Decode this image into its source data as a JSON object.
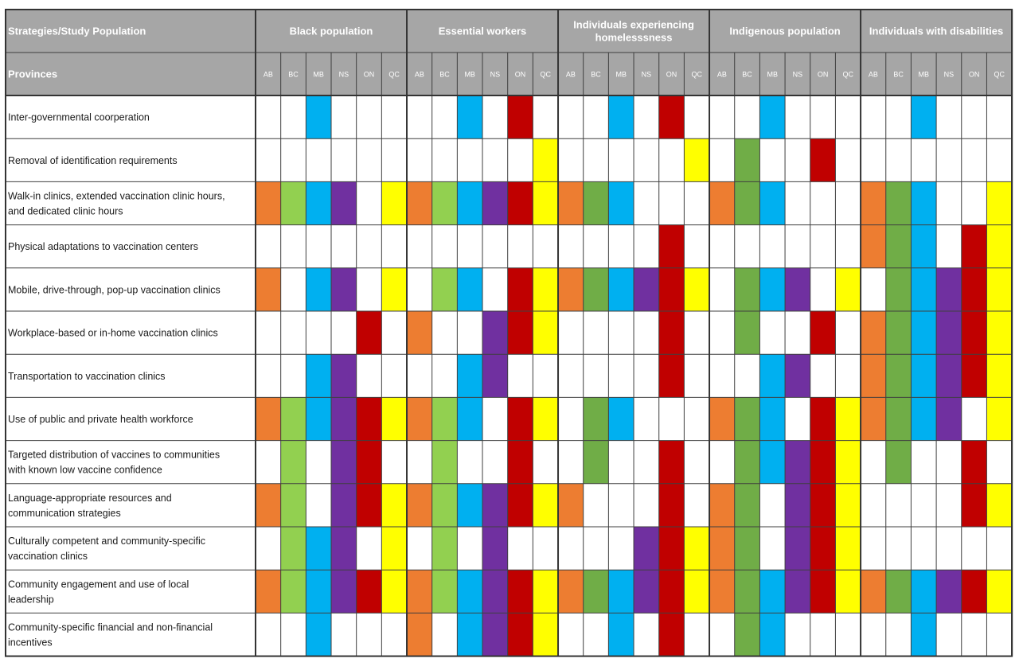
{
  "chart_data": {
    "type": "table",
    "corner_header": "Strategies/Study Population",
    "provinces_label": "Provinces",
    "provinces": [
      "AB",
      "BC",
      "MB",
      "NS",
      "ON",
      "QC"
    ],
    "populations": [
      {
        "name": "Black population"
      },
      {
        "name": "Essential workers"
      },
      {
        "name": "Individuals experiencing homelesssness",
        "lines": [
          "Individuals experiencing",
          "homelesssness"
        ]
      },
      {
        "name": "Indigenous population"
      },
      {
        "name": "Individuals with disabilities"
      }
    ],
    "province_colors": {
      "AB": "#ED7D31",
      "MB": "#00B0F0",
      "NS": "#7030A0",
      "ON": "#C00000",
      "QC": "#FFFF00"
    },
    "bc_light_color": "#92D050",
    "bc_dark_color": "#70AD47",
    "rows": [
      {
        "label": "Inter-governmental coorperation",
        "lines": [
          "Inter-governmental coorperation"
        ],
        "cells": [
          [
            0,
            0,
            1,
            0,
            0,
            0
          ],
          [
            0,
            0,
            1,
            0,
            1,
            0
          ],
          [
            0,
            0,
            1,
            0,
            1,
            0
          ],
          [
            0,
            0,
            1,
            0,
            0,
            0
          ],
          [
            0,
            0,
            1,
            0,
            0,
            0
          ]
        ]
      },
      {
        "label": "Removal of identification requirements",
        "lines": [
          "Removal of identification requirements"
        ],
        "cells": [
          [
            0,
            0,
            0,
            0,
            0,
            0
          ],
          [
            0,
            0,
            0,
            0,
            0,
            1
          ],
          [
            0,
            0,
            0,
            0,
            0,
            1
          ],
          [
            0,
            2,
            0,
            0,
            1,
            0
          ],
          [
            0,
            0,
            0,
            0,
            0,
            0
          ]
        ]
      },
      {
        "label": "Walk-in clinics, extended vaccination clinic hours, and dedicated clinic hours",
        "lines": [
          "Walk-in clinics, extended vaccination clinic hours,",
          "and dedicated clinic hours"
        ],
        "cells": [
          [
            1,
            1,
            1,
            1,
            0,
            1
          ],
          [
            1,
            1,
            1,
            1,
            1,
            1
          ],
          [
            1,
            2,
            1,
            0,
            0,
            0
          ],
          [
            1,
            2,
            1,
            0,
            0,
            0
          ],
          [
            1,
            2,
            1,
            0,
            0,
            1
          ]
        ]
      },
      {
        "label": "Physical adaptations to vaccination centers",
        "lines": [
          "Physical adaptations to vaccination centers"
        ],
        "cells": [
          [
            0,
            0,
            0,
            0,
            0,
            0
          ],
          [
            0,
            0,
            0,
            0,
            0,
            0
          ],
          [
            0,
            0,
            0,
            0,
            1,
            0
          ],
          [
            0,
            0,
            0,
            0,
            0,
            0
          ],
          [
            1,
            2,
            1,
            0,
            1,
            1
          ]
        ]
      },
      {
        "label": "Mobile, drive-through, pop-up vaccination clinics",
        "lines": [
          "Mobile, drive-through, pop-up vaccination clinics"
        ],
        "cells": [
          [
            1,
            0,
            1,
            1,
            0,
            1
          ],
          [
            0,
            1,
            1,
            0,
            1,
            1
          ],
          [
            1,
            2,
            1,
            1,
            1,
            1
          ],
          [
            0,
            2,
            1,
            1,
            0,
            1
          ],
          [
            0,
            2,
            1,
            1,
            1,
            1
          ]
        ]
      },
      {
        "label": "Workplace-based or in-home vaccination clinics",
        "lines": [
          "Workplace-based or in-home vaccination clinics"
        ],
        "cells": [
          [
            0,
            0,
            0,
            0,
            1,
            0
          ],
          [
            1,
            0,
            0,
            1,
            1,
            1
          ],
          [
            0,
            0,
            0,
            0,
            1,
            0
          ],
          [
            0,
            2,
            0,
            0,
            1,
            0
          ],
          [
            1,
            2,
            1,
            1,
            1,
            1
          ]
        ]
      },
      {
        "label": "Transportation to vaccination clinics",
        "lines": [
          "Transportation to vaccination clinics"
        ],
        "cells": [
          [
            0,
            0,
            1,
            1,
            0,
            0
          ],
          [
            0,
            0,
            1,
            1,
            0,
            0
          ],
          [
            0,
            0,
            0,
            0,
            1,
            0
          ],
          [
            0,
            0,
            1,
            1,
            0,
            0
          ],
          [
            1,
            2,
            1,
            1,
            1,
            1
          ]
        ]
      },
      {
        "label": "Use of public and private health workforce",
        "lines": [
          "Use of public and private health workforce"
        ],
        "cells": [
          [
            1,
            1,
            1,
            1,
            1,
            1
          ],
          [
            1,
            1,
            1,
            0,
            1,
            1
          ],
          [
            0,
            2,
            1,
            0,
            0,
            0
          ],
          [
            1,
            2,
            1,
            0,
            1,
            1
          ],
          [
            1,
            2,
            1,
            1,
            0,
            1
          ]
        ]
      },
      {
        "label": "Targeted distribution of vaccines to communities with known low vaccine confidence",
        "lines": [
          "Targeted distribution of vaccines to communities",
          "with known low vaccine confidence"
        ],
        "cells": [
          [
            0,
            1,
            0,
            1,
            1,
            0
          ],
          [
            0,
            1,
            0,
            0,
            1,
            0
          ],
          [
            0,
            2,
            0,
            0,
            1,
            0
          ],
          [
            0,
            2,
            1,
            1,
            1,
            1
          ],
          [
            0,
            2,
            0,
            0,
            1,
            0
          ]
        ]
      },
      {
        "label": "Language-appropriate resources and communication strategies",
        "lines": [
          "Language-appropriate resources and",
          "communication strategies"
        ],
        "cells": [
          [
            1,
            1,
            0,
            1,
            1,
            1
          ],
          [
            1,
            1,
            1,
            1,
            1,
            1
          ],
          [
            1,
            0,
            0,
            0,
            1,
            0
          ],
          [
            1,
            2,
            0,
            1,
            1,
            1
          ],
          [
            0,
            0,
            0,
            0,
            1,
            1
          ]
        ]
      },
      {
        "label": "Culturally competent and community-specific vaccination clinics",
        "lines": [
          "Culturally competent and community-specific",
          "vaccination clinics"
        ],
        "cells": [
          [
            0,
            1,
            1,
            1,
            0,
            1
          ],
          [
            0,
            1,
            0,
            1,
            0,
            0
          ],
          [
            0,
            0,
            0,
            1,
            1,
            1
          ],
          [
            1,
            2,
            0,
            1,
            1,
            1
          ],
          [
            0,
            0,
            0,
            0,
            0,
            0
          ]
        ]
      },
      {
        "label": "Community engagement and use of local leadership",
        "lines": [
          "Community engagement and use of local",
          "leadership"
        ],
        "cells": [
          [
            1,
            1,
            1,
            1,
            1,
            1
          ],
          [
            1,
            1,
            1,
            1,
            1,
            1
          ],
          [
            1,
            2,
            1,
            1,
            1,
            1
          ],
          [
            1,
            2,
            1,
            1,
            1,
            1
          ],
          [
            1,
            2,
            1,
            1,
            1,
            1
          ]
        ]
      },
      {
        "label": "Community-specific financial and non-financial incentives",
        "lines": [
          "Community-specific financial and non-financial",
          "incentives"
        ],
        "cells": [
          [
            0,
            0,
            1,
            0,
            0,
            0
          ],
          [
            1,
            0,
            1,
            1,
            1,
            1
          ],
          [
            0,
            0,
            1,
            0,
            1,
            0
          ],
          [
            0,
            2,
            1,
            0,
            0,
            0
          ],
          [
            0,
            0,
            1,
            0,
            0,
            0
          ]
        ]
      }
    ]
  },
  "style": {
    "header_bg": "#A6A6A6",
    "header_text": "#FFFFFF",
    "grid_line": "#3F3F3F",
    "cell_empty": "#FFFFFF",
    "row_text": "#1A1A1A"
  }
}
